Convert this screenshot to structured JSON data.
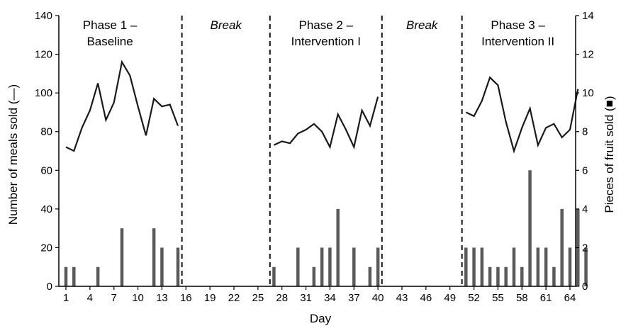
{
  "chart_data": {
    "type": "line",
    "xlabel": "Day",
    "ylabel": "Number of meals sold (—)",
    "y2label": "Pieces of fruit sold (■)",
    "xlim": [
      1,
      64
    ],
    "ylim": [
      0,
      140
    ],
    "y2lim": [
      0,
      14
    ],
    "x_ticks": [
      1,
      4,
      7,
      10,
      13,
      16,
      19,
      22,
      25,
      28,
      31,
      34,
      37,
      40,
      43,
      46,
      49,
      52,
      55,
      58,
      61,
      64
    ],
    "x_tick_labels": [
      "1",
      "4",
      "7",
      "10",
      "13",
      "16",
      "19",
      "22",
      "25",
      "28",
      "31",
      "34",
      "37",
      "40",
      "43",
      "46",
      "49",
      "52",
      "55",
      "58",
      "61",
      "64"
    ],
    "y_ticks": [
      0,
      20,
      40,
      60,
      80,
      100,
      120,
      140
    ],
    "y_tick_labels": [
      "0",
      "20",
      "40",
      "60",
      "80",
      "100",
      "120",
      "140"
    ],
    "y2_ticks": [
      0,
      2,
      4,
      6,
      8,
      10,
      12,
      14
    ],
    "y2_tick_labels": [
      "0",
      "2",
      "4",
      "6",
      "8",
      "10",
      "12",
      "14"
    ],
    "period_dividers": [
      15.5,
      26.5,
      40.5,
      50.5
    ],
    "periods": [
      {
        "label": "Phase 1 –",
        "label2": "Baseline",
        "center": 6.5,
        "italic": false
      },
      {
        "label": "Break",
        "label2": "",
        "center": 21,
        "italic": true
      },
      {
        "label": "Phase 2 –",
        "label2": "Intervention I",
        "center": 33.5,
        "italic": false
      },
      {
        "label": "Break",
        "label2": "",
        "center": 45.5,
        "italic": true
      },
      {
        "label": "Phase 3 –",
        "label2": "Intervention II",
        "center": 57.5,
        "italic": false
      }
    ],
    "meals_series": [
      [
        [
          1,
          72
        ],
        [
          2,
          70
        ],
        [
          3,
          82
        ],
        [
          4,
          91
        ],
        [
          5,
          105
        ],
        [
          6,
          86
        ],
        [
          7,
          95
        ],
        [
          8,
          116
        ],
        [
          9,
          109
        ],
        [
          10,
          93
        ],
        [
          11,
          78
        ],
        [
          12,
          97
        ],
        [
          13,
          93
        ],
        [
          14,
          94
        ],
        [
          15,
          83
        ]
      ],
      [
        [
          27,
          73
        ],
        [
          28,
          75
        ],
        [
          29,
          74
        ],
        [
          30,
          79
        ],
        [
          31,
          81
        ],
        [
          32,
          84
        ],
        [
          33,
          80
        ],
        [
          34,
          72
        ],
        [
          35,
          89
        ],
        [
          36,
          81
        ],
        [
          37,
          72
        ],
        [
          38,
          91
        ],
        [
          39,
          83
        ],
        [
          40,
          98
        ]
      ],
      [
        [
          51,
          90
        ],
        [
          52,
          88
        ],
        [
          53,
          96
        ],
        [
          54,
          108
        ],
        [
          55,
          104
        ],
        [
          56,
          85
        ],
        [
          57,
          70
        ],
        [
          58,
          82
        ],
        [
          59,
          92
        ],
        [
          60,
          73
        ],
        [
          61,
          82
        ],
        [
          62,
          84
        ],
        [
          63,
          77
        ],
        [
          64,
          81
        ],
        [
          65,
          102
        ]
      ]
    ],
    "fruit_bars": [
      [
        1,
        1
      ],
      [
        2,
        1
      ],
      [
        5,
        1
      ],
      [
        8,
        3
      ],
      [
        12,
        3
      ],
      [
        13,
        2
      ],
      [
        15,
        2
      ],
      [
        27,
        1
      ],
      [
        30,
        2
      ],
      [
        32,
        1
      ],
      [
        33,
        2
      ],
      [
        34,
        2
      ],
      [
        35,
        4
      ],
      [
        37,
        2
      ],
      [
        39,
        1
      ],
      [
        40,
        2
      ],
      [
        51,
        2
      ],
      [
        52,
        2
      ],
      [
        53,
        2
      ],
      [
        54,
        1
      ],
      [
        55,
        1
      ],
      [
        56,
        1
      ],
      [
        57,
        2
      ],
      [
        58,
        1
      ],
      [
        59,
        6
      ],
      [
        60,
        2
      ],
      [
        61,
        2
      ],
      [
        62,
        1
      ],
      [
        63,
        4
      ],
      [
        64,
        2
      ],
      [
        65,
        4
      ],
      [
        66,
        2
      ]
    ],
    "colors": {
      "line": "#1a1a1a",
      "bars": "#5a5a5a",
      "axis": "#000000",
      "divider": "#111111"
    }
  }
}
